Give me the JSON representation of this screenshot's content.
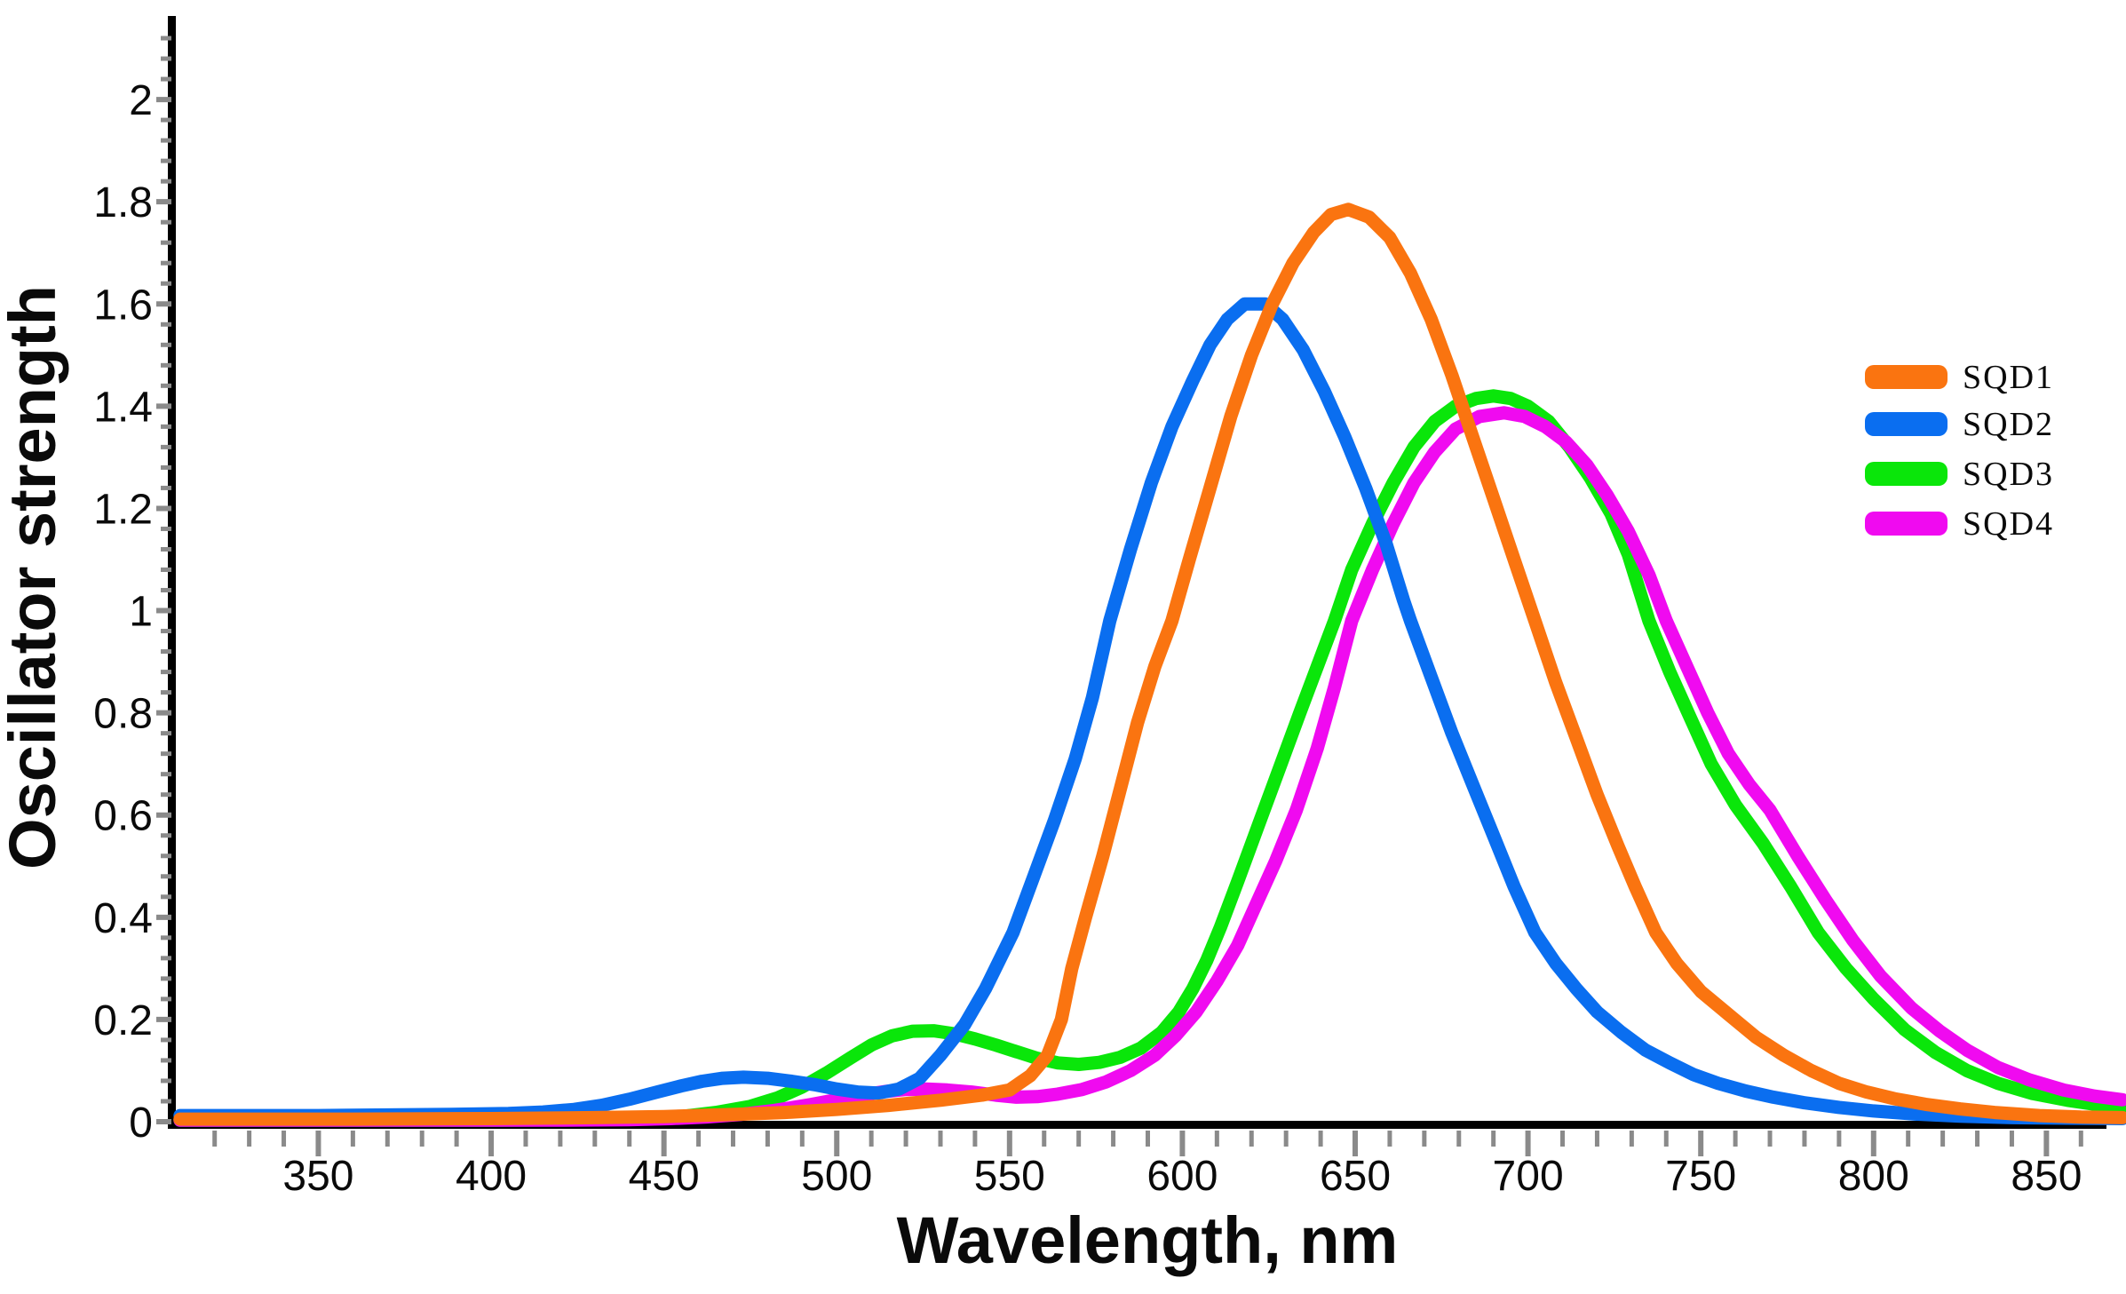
{
  "figure": {
    "background": "#ffffff",
    "axis_color": "#000000",
    "tick_color": "#8a8a8a",
    "text_color": "#0a0a0a"
  },
  "axes": {
    "x": {
      "title": "Wavelength, nm",
      "min": 308,
      "max": 872,
      "major_ticks": [
        350,
        400,
        450,
        500,
        550,
        600,
        650,
        700,
        750,
        800,
        850
      ],
      "tick_labels": [
        "350",
        "400",
        "450",
        "500",
        "550",
        "600",
        "650",
        "700",
        "750",
        "800",
        "850"
      ],
      "minor_start": 320,
      "minor_end": 860,
      "minor_step": 10
    },
    "y": {
      "title": "Oscillator strength",
      "min": 0,
      "max": 2.16,
      "major_ticks": [
        0,
        0.2,
        0.4,
        0.6,
        0.8,
        1,
        1.2,
        1.4,
        1.6,
        1.8,
        2
      ],
      "tick_labels": [
        "0",
        "0.2",
        "0.4",
        "0.6",
        "0.8",
        "1",
        "1.2",
        "1.4",
        "1.6",
        "1.8",
        "2"
      ],
      "minor_step": 0.04,
      "minor_max": 2.12
    }
  },
  "legend": {
    "position": "right",
    "items": [
      {
        "label": "SQD1",
        "color": "#FA7410"
      },
      {
        "label": "SQD2",
        "color": "#0A6EF0"
      },
      {
        "label": "SQD3",
        "color": "#0AE60A"
      },
      {
        "label": "SQD4",
        "color": "#F00AF0"
      }
    ]
  },
  "chart_data": {
    "type": "line",
    "title": "",
    "xlabel": "Wavelength, nm",
    "ylabel": "Oscillator strength",
    "xlim": [
      308,
      872
    ],
    "ylim": [
      0,
      2.16
    ],
    "grid": false,
    "legend_position": "right",
    "series": [
      {
        "name": "SQD1",
        "color": "#FA7410",
        "peak": {
          "wavelength_nm": 646,
          "value": 1.78
        },
        "points": [
          [
            310,
            0.005
          ],
          [
            360,
            0.005
          ],
          [
            400,
            0.006
          ],
          [
            430,
            0.008
          ],
          [
            450,
            0.01
          ],
          [
            470,
            0.014
          ],
          [
            485,
            0.018
          ],
          [
            500,
            0.024
          ],
          [
            515,
            0.032
          ],
          [
            530,
            0.042
          ],
          [
            542,
            0.052
          ],
          [
            550,
            0.062
          ],
          [
            556,
            0.09
          ],
          [
            561,
            0.13
          ],
          [
            565,
            0.2
          ],
          [
            568,
            0.3
          ],
          [
            572,
            0.4
          ],
          [
            577,
            0.52
          ],
          [
            582,
            0.65
          ],
          [
            587,
            0.78
          ],
          [
            592,
            0.89
          ],
          [
            597,
            0.98
          ],
          [
            602,
            1.1
          ],
          [
            608,
            1.24
          ],
          [
            614,
            1.38
          ],
          [
            620,
            1.5
          ],
          [
            626,
            1.6
          ],
          [
            632,
            1.68
          ],
          [
            638,
            1.74
          ],
          [
            643,
            1.775
          ],
          [
            648,
            1.785
          ],
          [
            654,
            1.77
          ],
          [
            660,
            1.73
          ],
          [
            666,
            1.66
          ],
          [
            672,
            1.57
          ],
          [
            678,
            1.46
          ],
          [
            684,
            1.34
          ],
          [
            690,
            1.22
          ],
          [
            696,
            1.1
          ],
          [
            702,
            0.98
          ],
          [
            708,
            0.86
          ],
          [
            714,
            0.75
          ],
          [
            720,
            0.64
          ],
          [
            726,
            0.54
          ],
          [
            731,
            0.46
          ],
          [
            737,
            0.37
          ],
          [
            743,
            0.31
          ],
          [
            750,
            0.255
          ],
          [
            758,
            0.21
          ],
          [
            766,
            0.165
          ],
          [
            774,
            0.13
          ],
          [
            782,
            0.1
          ],
          [
            790,
            0.075
          ],
          [
            798,
            0.058
          ],
          [
            806,
            0.045
          ],
          [
            815,
            0.034
          ],
          [
            825,
            0.025
          ],
          [
            835,
            0.018
          ],
          [
            848,
            0.012
          ],
          [
            860,
            0.009
          ],
          [
            872,
            0.008
          ]
        ]
      },
      {
        "name": "SQD2",
        "color": "#0A6EF0",
        "peak": {
          "wavelength_nm": 618,
          "value": 1.6
        },
        "secondary_peak": {
          "wavelength_nm": 470,
          "value": 0.087
        },
        "points": [
          [
            310,
            0.012
          ],
          [
            350,
            0.012
          ],
          [
            385,
            0.014
          ],
          [
            405,
            0.016
          ],
          [
            415,
            0.019
          ],
          [
            424,
            0.024
          ],
          [
            432,
            0.032
          ],
          [
            440,
            0.044
          ],
          [
            448,
            0.058
          ],
          [
            455,
            0.07
          ],
          [
            461,
            0.079
          ],
          [
            467,
            0.085
          ],
          [
            473,
            0.087
          ],
          [
            480,
            0.085
          ],
          [
            487,
            0.079
          ],
          [
            494,
            0.072
          ],
          [
            500,
            0.064
          ],
          [
            506,
            0.058
          ],
          [
            512,
            0.056
          ],
          [
            518,
            0.064
          ],
          [
            524,
            0.085
          ],
          [
            530,
            0.13
          ],
          [
            537,
            0.19
          ],
          [
            543,
            0.26
          ],
          [
            551,
            0.37
          ],
          [
            557,
            0.48
          ],
          [
            563,
            0.59
          ],
          [
            569,
            0.71
          ],
          [
            574,
            0.83
          ],
          [
            579,
            0.98
          ],
          [
            585,
            1.12
          ],
          [
            591,
            1.25
          ],
          [
            597,
            1.36
          ],
          [
            603,
            1.45
          ],
          [
            608,
            1.52
          ],
          [
            613,
            1.57
          ],
          [
            618,
            1.6
          ],
          [
            624,
            1.6
          ],
          [
            629,
            1.57
          ],
          [
            635,
            1.51
          ],
          [
            641,
            1.43
          ],
          [
            647,
            1.34
          ],
          [
            653,
            1.24
          ],
          [
            659,
            1.13
          ],
          [
            664,
            1.02
          ],
          [
            666,
            0.98
          ],
          [
            672,
            0.87
          ],
          [
            678,
            0.76
          ],
          [
            684,
            0.66
          ],
          [
            690,
            0.56
          ],
          [
            696,
            0.46
          ],
          [
            702,
            0.37
          ],
          [
            708,
            0.31
          ],
          [
            714,
            0.26
          ],
          [
            720,
            0.215
          ],
          [
            727,
            0.175
          ],
          [
            734,
            0.14
          ],
          [
            741,
            0.115
          ],
          [
            748,
            0.092
          ],
          [
            755,
            0.075
          ],
          [
            763,
            0.06
          ],
          [
            771,
            0.048
          ],
          [
            780,
            0.037
          ],
          [
            790,
            0.028
          ],
          [
            800,
            0.021
          ],
          [
            812,
            0.015
          ],
          [
            825,
            0.011
          ],
          [
            840,
            0.008
          ],
          [
            856,
            0.007
          ],
          [
            872,
            0.006
          ]
        ]
      },
      {
        "name": "SQD3",
        "color": "#0AE60A",
        "peak": {
          "wavelength_nm": 690,
          "value": 1.42
        },
        "secondary_peak": {
          "wavelength_nm": 525,
          "value": 0.18
        },
        "points": [
          [
            310,
            0.003
          ],
          [
            400,
            0.003
          ],
          [
            430,
            0.004
          ],
          [
            445,
            0.006
          ],
          [
            455,
            0.01
          ],
          [
            465,
            0.018
          ],
          [
            475,
            0.03
          ],
          [
            483,
            0.047
          ],
          [
            490,
            0.068
          ],
          [
            497,
            0.095
          ],
          [
            504,
            0.125
          ],
          [
            510,
            0.15
          ],
          [
            516,
            0.168
          ],
          [
            522,
            0.177
          ],
          [
            528,
            0.178
          ],
          [
            534,
            0.172
          ],
          [
            540,
            0.162
          ],
          [
            546,
            0.15
          ],
          [
            552,
            0.137
          ],
          [
            558,
            0.124
          ],
          [
            564,
            0.115
          ],
          [
            570,
            0.112
          ],
          [
            576,
            0.116
          ],
          [
            582,
            0.126
          ],
          [
            588,
            0.144
          ],
          [
            594,
            0.175
          ],
          [
            599,
            0.215
          ],
          [
            603,
            0.26
          ],
          [
            607,
            0.315
          ],
          [
            611,
            0.38
          ],
          [
            616,
            0.47
          ],
          [
            622,
            0.58
          ],
          [
            628,
            0.69
          ],
          [
            634,
            0.8
          ],
          [
            639,
            0.89
          ],
          [
            644,
            0.98
          ],
          [
            649,
            1.08
          ],
          [
            655,
            1.17
          ],
          [
            661,
            1.25
          ],
          [
            667,
            1.32
          ],
          [
            673,
            1.37
          ],
          [
            679,
            1.4
          ],
          [
            685,
            1.415
          ],
          [
            690,
            1.42
          ],
          [
            695,
            1.415
          ],
          [
            700,
            1.4
          ],
          [
            706,
            1.37
          ],
          [
            712,
            1.32
          ],
          [
            718,
            1.26
          ],
          [
            724,
            1.19
          ],
          [
            729,
            1.11
          ],
          [
            735,
            0.98
          ],
          [
            741,
            0.88
          ],
          [
            747,
            0.79
          ],
          [
            753,
            0.7
          ],
          [
            760,
            0.62
          ],
          [
            768,
            0.545
          ],
          [
            776,
            0.46
          ],
          [
            784,
            0.37
          ],
          [
            792,
            0.3
          ],
          [
            800,
            0.24
          ],
          [
            809,
            0.18
          ],
          [
            818,
            0.135
          ],
          [
            827,
            0.1
          ],
          [
            836,
            0.075
          ],
          [
            846,
            0.055
          ],
          [
            856,
            0.042
          ],
          [
            865,
            0.033
          ],
          [
            872,
            0.028
          ]
        ]
      },
      {
        "name": "SQD4",
        "color": "#F00AF0",
        "peak": {
          "wavelength_nm": 693,
          "value": 1.39
        },
        "secondary_peak": {
          "wavelength_nm": 522,
          "value": 0.065
        },
        "points": [
          [
            310,
            0.003
          ],
          [
            420,
            0.003
          ],
          [
            440,
            0.004
          ],
          [
            452,
            0.006
          ],
          [
            462,
            0.009
          ],
          [
            472,
            0.014
          ],
          [
            482,
            0.022
          ],
          [
            492,
            0.033
          ],
          [
            500,
            0.043
          ],
          [
            507,
            0.052
          ],
          [
            514,
            0.059
          ],
          [
            520,
            0.063
          ],
          [
            526,
            0.064
          ],
          [
            532,
            0.062
          ],
          [
            539,
            0.058
          ],
          [
            546,
            0.052
          ],
          [
            552,
            0.048
          ],
          [
            558,
            0.049
          ],
          [
            564,
            0.054
          ],
          [
            571,
            0.063
          ],
          [
            578,
            0.078
          ],
          [
            585,
            0.1
          ],
          [
            592,
            0.13
          ],
          [
            598,
            0.168
          ],
          [
            604,
            0.215
          ],
          [
            610,
            0.275
          ],
          [
            616,
            0.345
          ],
          [
            621,
            0.42
          ],
          [
            627,
            0.51
          ],
          [
            633,
            0.61
          ],
          [
            639,
            0.73
          ],
          [
            644,
            0.85
          ],
          [
            649,
            0.98
          ],
          [
            655,
            1.08
          ],
          [
            661,
            1.17
          ],
          [
            667,
            1.25
          ],
          [
            673,
            1.31
          ],
          [
            679,
            1.355
          ],
          [
            686,
            1.38
          ],
          [
            693,
            1.387
          ],
          [
            699,
            1.38
          ],
          [
            705,
            1.36
          ],
          [
            711,
            1.33
          ],
          [
            717,
            1.285
          ],
          [
            723,
            1.225
          ],
          [
            729,
            1.155
          ],
          [
            735,
            1.07
          ],
          [
            740,
            0.98
          ],
          [
            746,
            0.89
          ],
          [
            752,
            0.8
          ],
          [
            758,
            0.72
          ],
          [
            764,
            0.66
          ],
          [
            770,
            0.61
          ],
          [
            778,
            0.52
          ],
          [
            786,
            0.435
          ],
          [
            794,
            0.355
          ],
          [
            802,
            0.285
          ],
          [
            811,
            0.222
          ],
          [
            819,
            0.178
          ],
          [
            827,
            0.14
          ],
          [
            836,
            0.106
          ],
          [
            845,
            0.082
          ],
          [
            855,
            0.062
          ],
          [
            864,
            0.05
          ],
          [
            872,
            0.043
          ]
        ]
      }
    ]
  }
}
